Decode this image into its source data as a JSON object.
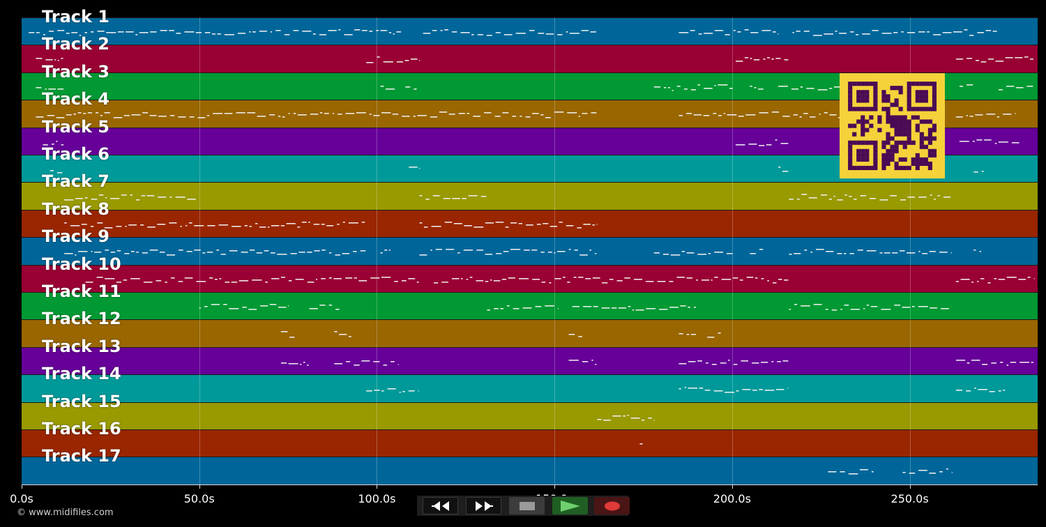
{
  "tracks": [
    {
      "label": "Track 1",
      "color": "#006699"
    },
    {
      "label": "Track 2",
      "color": "#990033"
    },
    {
      "label": "Track 3",
      "color": "#009933"
    },
    {
      "label": "Track 4",
      "color": "#996600"
    },
    {
      "label": "Track 5",
      "color": "#660099"
    },
    {
      "label": "Track 6",
      "color": "#009999"
    },
    {
      "label": "Track 7",
      "color": "#999900"
    },
    {
      "label": "Track 8",
      "color": "#992600"
    },
    {
      "label": "Track 9",
      "color": "#006699"
    },
    {
      "label": "Track 10",
      "color": "#990033"
    },
    {
      "label": "Track 11",
      "color": "#009933"
    },
    {
      "label": "Track 12",
      "color": "#996600"
    },
    {
      "label": "Track 13",
      "color": "#660099"
    },
    {
      "label": "Track 14",
      "color": "#009999"
    },
    {
      "label": "Track 15",
      "color": "#999900"
    },
    {
      "label": "Track 16",
      "color": "#992600"
    },
    {
      "label": "Track 17",
      "color": "#006699"
    }
  ],
  "timeline": {
    "duration_s": 286,
    "ticks": [
      {
        "value": 0,
        "label": "0.0s"
      },
      {
        "value": 50,
        "label": "50.0s"
      },
      {
        "value": 100,
        "label": "100.0s"
      },
      {
        "value": 150,
        "label": "150.0s"
      },
      {
        "value": 200,
        "label": "200.0s"
      },
      {
        "value": 250,
        "label": "250.0s"
      }
    ]
  },
  "footer": {
    "copyright": "© www.midifiles.com"
  },
  "transport": {
    "rewind_icon": "rewind-icon",
    "forward_icon": "fast-forward-icon",
    "stop_icon": "stop-icon",
    "play_icon": "play-icon",
    "record_icon": "record-icon"
  },
  "overlay": {
    "qr_icon": "qr-code-icon"
  }
}
